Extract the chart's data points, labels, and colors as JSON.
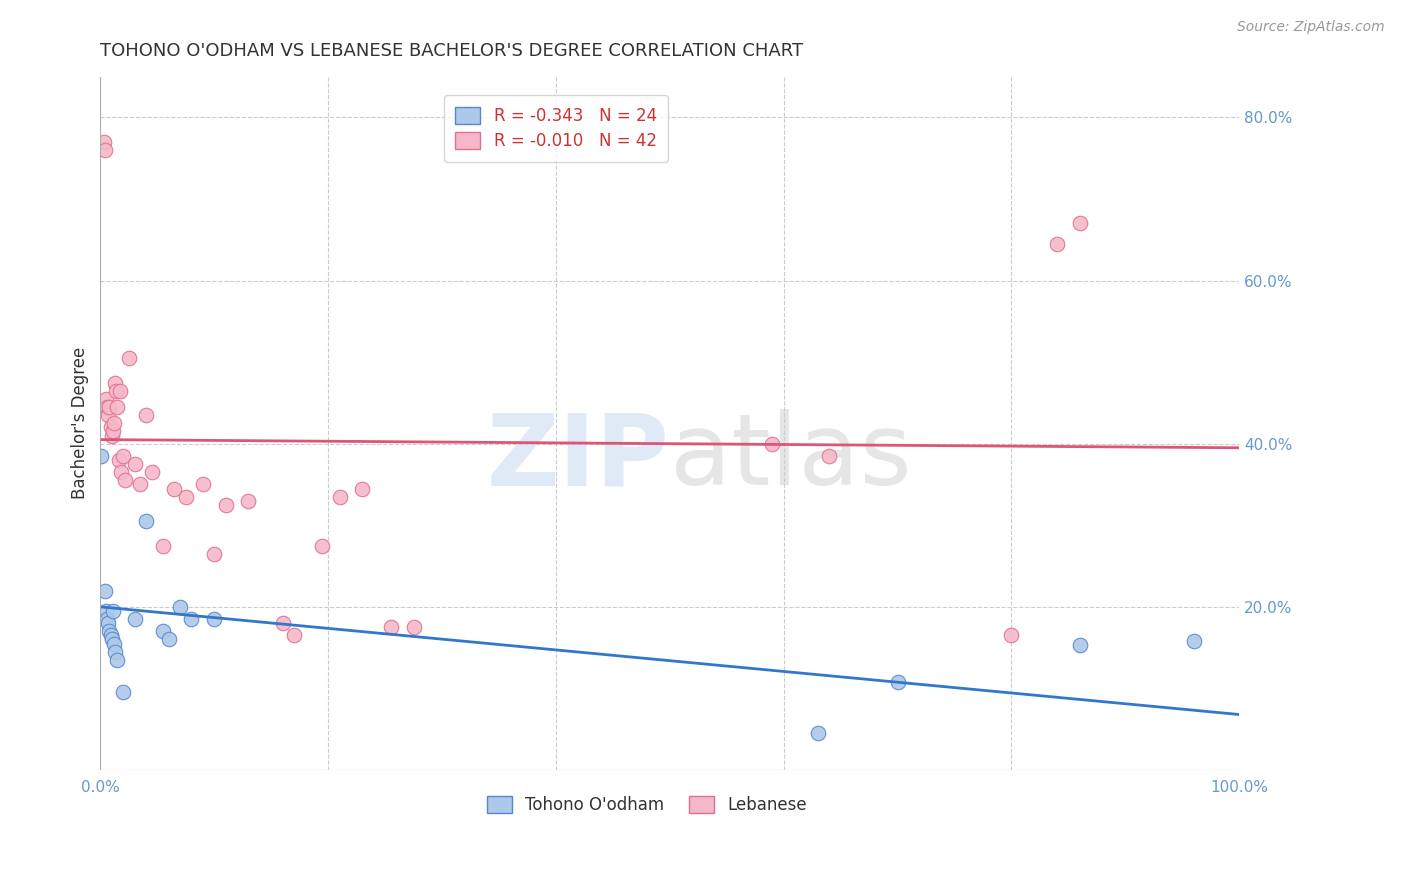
{
  "title": "TOHONO O'ODHAM VS LEBANESE BACHELOR'S DEGREE CORRELATION CHART",
  "source": "Source: ZipAtlas.com",
  "ylabel": "Bachelor's Degree",
  "watermark": "ZIPatlas",
  "xlim": [
    0.0,
    1.0
  ],
  "ylim": [
    0.0,
    0.85
  ],
  "ytick_positions_right": [
    0.8,
    0.6,
    0.4,
    0.2
  ],
  "legend_entries": [
    {
      "label": "R = -0.343   N = 24",
      "color": "#a8c4e0"
    },
    {
      "label": "R = -0.010   N = 42",
      "color": "#f5b8c8"
    }
  ],
  "tohono_scatter_x": [
    0.001,
    0.004,
    0.005,
    0.006,
    0.007,
    0.008,
    0.009,
    0.01,
    0.011,
    0.012,
    0.013,
    0.015,
    0.02,
    0.03,
    0.04,
    0.055,
    0.06,
    0.07,
    0.08,
    0.1,
    0.63,
    0.7,
    0.86,
    0.96
  ],
  "tohono_scatter_y": [
    0.385,
    0.22,
    0.195,
    0.185,
    0.18,
    0.17,
    0.165,
    0.16,
    0.195,
    0.155,
    0.145,
    0.135,
    0.095,
    0.185,
    0.305,
    0.17,
    0.16,
    0.2,
    0.185,
    0.185,
    0.045,
    0.108,
    0.153,
    0.158
  ],
  "lebanese_scatter_x": [
    0.003,
    0.004,
    0.005,
    0.006,
    0.007,
    0.008,
    0.009,
    0.01,
    0.011,
    0.012,
    0.013,
    0.014,
    0.015,
    0.016,
    0.017,
    0.018,
    0.02,
    0.022,
    0.025,
    0.03,
    0.035,
    0.04,
    0.045,
    0.055,
    0.065,
    0.075,
    0.09,
    0.1,
    0.11,
    0.13,
    0.16,
    0.17,
    0.195,
    0.21,
    0.23,
    0.255,
    0.275,
    0.59,
    0.64,
    0.8,
    0.84,
    0.86
  ],
  "lebanese_scatter_y": [
    0.77,
    0.76,
    0.455,
    0.445,
    0.435,
    0.445,
    0.42,
    0.41,
    0.415,
    0.425,
    0.475,
    0.465,
    0.445,
    0.38,
    0.465,
    0.365,
    0.385,
    0.355,
    0.505,
    0.375,
    0.35,
    0.435,
    0.365,
    0.275,
    0.345,
    0.335,
    0.35,
    0.265,
    0.325,
    0.33,
    0.18,
    0.165,
    0.275,
    0.335,
    0.345,
    0.175,
    0.175,
    0.4,
    0.385,
    0.165,
    0.645,
    0.67
  ],
  "tohono_line_x": [
    0.0,
    1.0
  ],
  "tohono_line_y": [
    0.2,
    0.068
  ],
  "lebanese_line_x": [
    0.0,
    1.0
  ],
  "lebanese_line_y": [
    0.405,
    0.395
  ],
  "scatter_size": 110,
  "tohono_color": "#adc8e8",
  "tohono_edge_color": "#5588cc",
  "lebanese_color": "#f5b8c8",
  "lebanese_edge_color": "#e07090",
  "tohono_line_color": "#3377cc",
  "lebanese_line_color": "#dd5577",
  "background_color": "#ffffff",
  "grid_color": "#cccccc",
  "title_color": "#333333",
  "axis_color": "#6699cc",
  "right_label_color": "#6699cc",
  "legend_label_color": "#cc3333",
  "bottom_legend_label1": "Tohono O'odham",
  "bottom_legend_label2": "Lebanese"
}
